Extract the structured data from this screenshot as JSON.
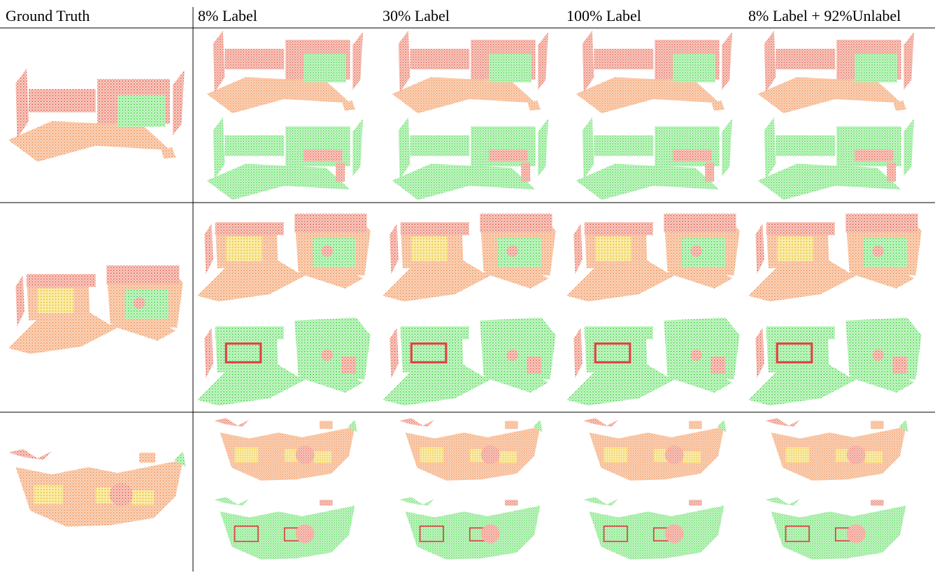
{
  "header": {
    "columns": [
      "Ground Truth",
      "8% Label",
      "30% Label",
      "100% Label",
      "8% Label + 92%Unlabel"
    ]
  }
}
